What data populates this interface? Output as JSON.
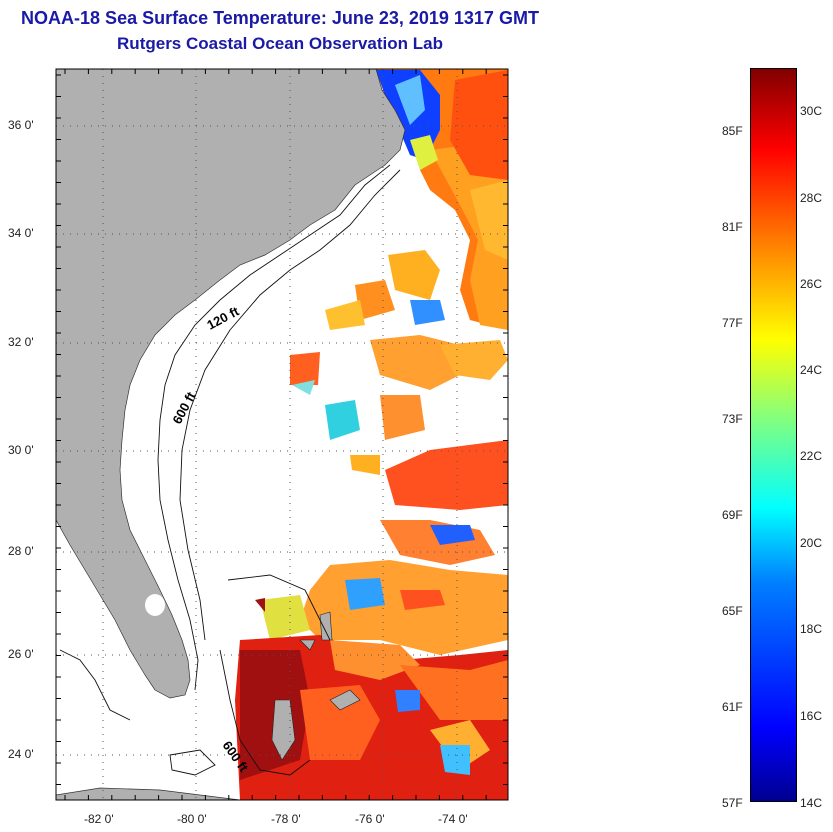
{
  "title_line1": "NOAA-18 Sea Surface Temperature:  June 23, 2019 1317 GMT",
  "title_line2": "Rutgers Coastal Ocean Observation Lab",
  "lat_labels": [
    "36 0'",
    "34 0'",
    "32 0'",
    "30 0'",
    "28 0'",
    "26 0'",
    "24 0'"
  ],
  "lon_labels": [
    "-82 0'",
    "-80 0'",
    "-78 0'",
    "-76 0'",
    "-74 0'"
  ],
  "contours": {
    "shelf": "120 ft",
    "slope": "600 ft",
    "bahamas": "600 ft"
  },
  "colorbar": {
    "fahrenheit": [
      "85F",
      "81F",
      "77F",
      "73F",
      "69F",
      "65F",
      "61F",
      "57F"
    ],
    "celsius": [
      "30C",
      "28C",
      "26C",
      "24C",
      "22C",
      "20C",
      "18C",
      "16C",
      "14C"
    ],
    "min_c": 14,
    "max_c": 31,
    "colormap": "jet"
  },
  "colors": {
    "title": "#1a1aa6",
    "land": "#b0b0b0",
    "ocean_background": "#ffffff"
  }
}
